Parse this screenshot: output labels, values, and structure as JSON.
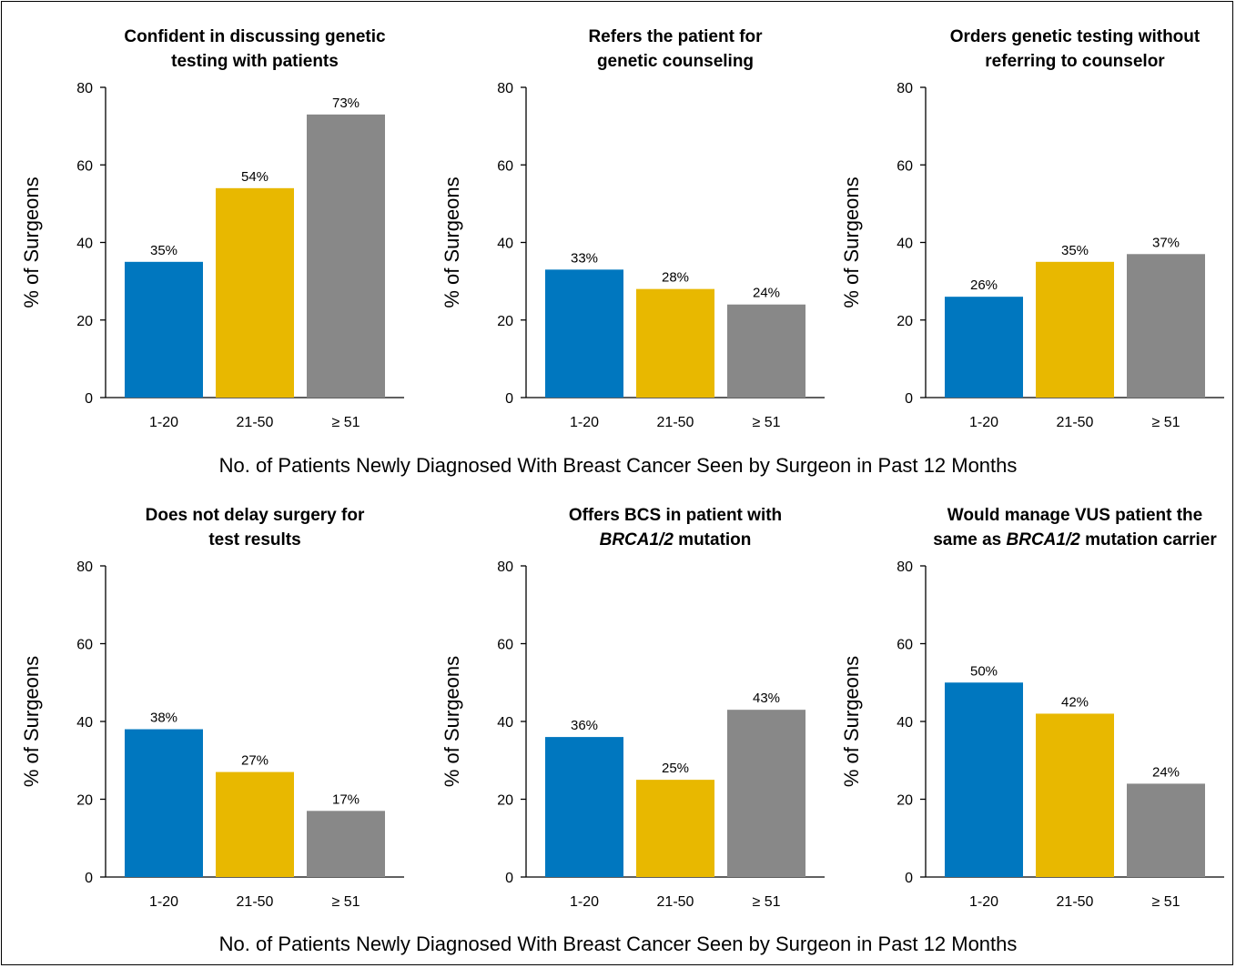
{
  "figure": {
    "x_axis_caption_top": "No. of Patients Newly Diagnosed With Breast Cancer Seen by Surgeon in Past 12 Months",
    "x_axis_caption_bottom": "No. of Patients Newly Diagnosed With Breast Cancer Seen by Surgeon in Past 12 Months"
  },
  "colors": {
    "1-20": "#0077bf",
    "21-50": "#e8b800",
    "ge51": "#888888"
  },
  "chart_data": [
    {
      "type": "bar",
      "title": [
        "Confident in discussing genetic",
        "testing with patients"
      ],
      "categories": [
        "1-20",
        "21-50",
        "≥ 51"
      ],
      "values": [
        35,
        54,
        73
      ],
      "value_labels": [
        "35%",
        "54%",
        "73%"
      ],
      "ylabel": "% of Surgeons",
      "ylim": [
        0,
        80
      ],
      "yticks": [
        0,
        20,
        40,
        60,
        80
      ]
    },
    {
      "type": "bar",
      "title": [
        "Refers the patient for",
        "genetic counseling"
      ],
      "categories": [
        "1-20",
        "21-50",
        "≥ 51"
      ],
      "values": [
        33,
        28,
        24
      ],
      "value_labels": [
        "33%",
        "28%",
        "24%"
      ],
      "ylabel": "% of Surgeons",
      "ylim": [
        0,
        80
      ],
      "yticks": [
        0,
        20,
        40,
        60,
        80
      ]
    },
    {
      "type": "bar",
      "title": [
        "Orders genetic testing without",
        "referring to counselor"
      ],
      "categories": [
        "1-20",
        "21-50",
        "≥ 51"
      ],
      "values": [
        26,
        35,
        37
      ],
      "value_labels": [
        "26%",
        "35%",
        "37%"
      ],
      "ylabel": "% of Surgeons",
      "ylim": [
        0,
        80
      ],
      "yticks": [
        0,
        20,
        40,
        60,
        80
      ]
    },
    {
      "type": "bar",
      "title": [
        "Does not delay surgery for",
        "test results"
      ],
      "categories": [
        "1-20",
        "21-50",
        "≥ 51"
      ],
      "values": [
        38,
        27,
        17
      ],
      "value_labels": [
        "38%",
        "27%",
        "17%"
      ],
      "ylabel": "% of Surgeons",
      "ylim": [
        0,
        80
      ],
      "yticks": [
        0,
        20,
        40,
        60,
        80
      ]
    },
    {
      "type": "bar",
      "title": [
        "Offers BCS in patient with",
        "BRCA1/2 mutation"
      ],
      "categories": [
        "1-20",
        "21-50",
        "≥ 51"
      ],
      "values": [
        36,
        25,
        43
      ],
      "value_labels": [
        "36%",
        "25%",
        "43%"
      ],
      "ylabel": "% of Surgeons",
      "ylim": [
        0,
        80
      ],
      "yticks": [
        0,
        20,
        40,
        60,
        80
      ]
    },
    {
      "type": "bar",
      "title": [
        "Would manage VUS patient the",
        "same as BRCA1/2 mutation carrier"
      ],
      "categories": [
        "1-20",
        "21-50",
        "≥ 51"
      ],
      "values": [
        50,
        42,
        24
      ],
      "value_labels": [
        "50%",
        "42%",
        "24%"
      ],
      "ylabel": "% of Surgeons",
      "ylim": [
        0,
        80
      ],
      "yticks": [
        0,
        20,
        40,
        60,
        80
      ]
    }
  ]
}
